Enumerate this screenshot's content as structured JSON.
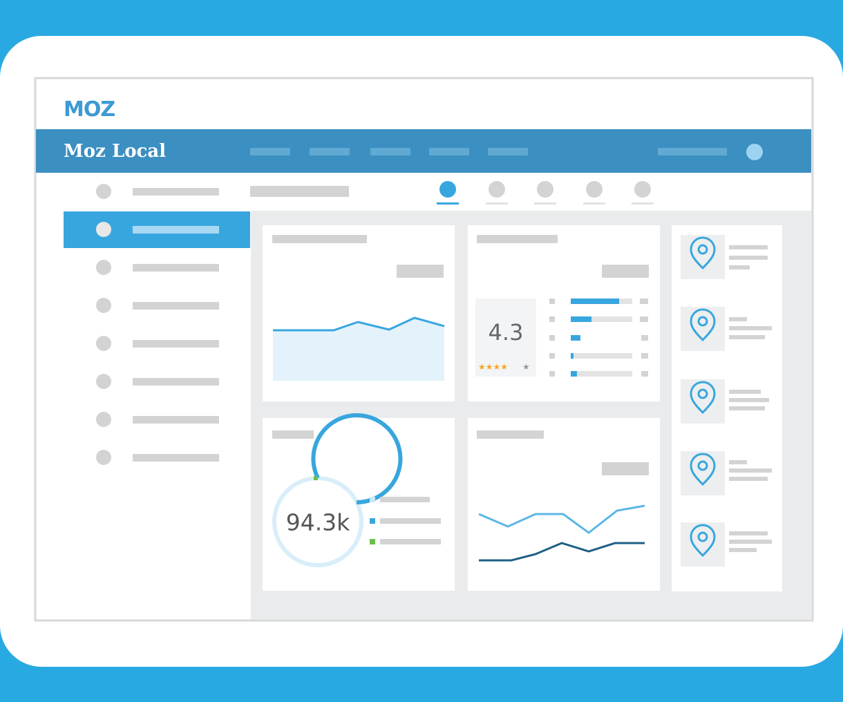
{
  "header": {
    "logo": "MOZ",
    "title": "Moz Local"
  },
  "widgets": {
    "rating": "4.3",
    "total": "94.3k"
  }
}
